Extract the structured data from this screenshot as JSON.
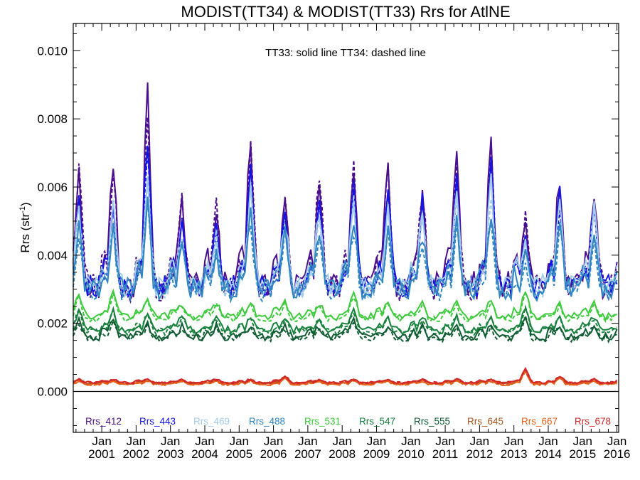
{
  "chart_data": {
    "type": "line",
    "title": "MODIST(TT34) & MODIST(TT33)  Rrs for AtlNE",
    "ylabel": "Rrs (str",
    "ylabel_sup": "-1",
    "ylabel_close": ")",
    "annotation": "TT33: solid line   TT34: dashed line",
    "ylim": [
      -0.0012,
      0.0108
    ],
    "xlim": [
      2000.17,
      2016.05
    ],
    "y_ticks": [
      "0.000",
      "0.002",
      "0.004",
      "0.006",
      "0.008",
      "0.010"
    ],
    "y_tick_values": [
      0,
      0.002,
      0.004,
      0.006,
      0.008,
      0.01
    ],
    "x_tick_month": "Jan",
    "x_tick_years": [
      "2001",
      "2002",
      "2003",
      "2004",
      "2005",
      "2006",
      "2007",
      "2008",
      "2009",
      "2010",
      "2011",
      "2012",
      "2013",
      "2014",
      "2015",
      "2016"
    ],
    "grid": false,
    "legend_placement": "bottom inside plot",
    "series": [
      {
        "name": "Rrs_412",
        "color": "#4B0F8C",
        "base": 0.0041,
        "amps": [
          0.0037,
          0.0056,
          0.003,
          0.0023,
          0.0044,
          0.0025,
          0.0034,
          0.0036,
          0.0034,
          0.0029,
          0.0037,
          0.0043,
          0.0019,
          0.0033,
          0.0029,
          0.0027
        ],
        "summer": 0.0031,
        "bump": 0.0004
      },
      {
        "name": "Rrs_443",
        "color": "#1414E6",
        "base": 0.0037,
        "amps": [
          0.0026,
          0.0043,
          0.0019,
          0.0017,
          0.0036,
          0.0023,
          0.0028,
          0.003,
          0.0027,
          0.0024,
          0.0031,
          0.0036,
          0.0014,
          0.0026,
          0.0024,
          0.0024
        ],
        "summer": 0.0031,
        "bump": 0.0003
      },
      {
        "name": "Rrs_469",
        "color": "#A3CCEB",
        "base": 0.0036,
        "amps": [
          0.0022,
          0.0032,
          0.0016,
          0.0015,
          0.0029,
          0.002,
          0.0023,
          0.0025,
          0.0023,
          0.0021,
          0.0026,
          0.003,
          0.0012,
          0.0023,
          0.0022,
          0.0022
        ],
        "summer": 0.0031,
        "bump": 0.0003
      },
      {
        "name": "Rrs_488",
        "color": "#2F86C2",
        "base": 0.0034,
        "amps": [
          0.0017,
          0.0025,
          0.0013,
          0.0011,
          0.0022,
          0.0017,
          0.0018,
          0.0019,
          0.0018,
          0.0016,
          0.002,
          0.0023,
          0.0009,
          0.0018,
          0.0017,
          0.0017
        ],
        "summer": 0.003,
        "bump": 0.0003
      },
      {
        "name": "Rrs_531",
        "color": "#3DCB3D",
        "base": 0.0024,
        "amps": [
          0.0007,
          0.0006,
          0.0004,
          0.0004,
          0.0005,
          0.0005,
          0.0004,
          0.0007,
          0.0004,
          0.0004,
          0.0004,
          0.0005,
          0.0008,
          0.0004,
          0.0004,
          0.0004
        ],
        "summer": 0.0022,
        "bump": 0.0001
      },
      {
        "name": "Rrs_547",
        "color": "#17823C",
        "base": 0.0019,
        "amps": [
          0.0006,
          0.0005,
          0.0004,
          0.0004,
          0.0004,
          0.0004,
          0.0004,
          0.0006,
          0.0004,
          0.0004,
          0.0004,
          0.0004,
          0.0007,
          0.0004,
          0.0004,
          0.0004
        ],
        "summer": 0.0018,
        "bump": 0.0001
      },
      {
        "name": "Rrs_555",
        "color": "#0F5C32",
        "base": 0.0017,
        "amps": [
          0.0005,
          0.0004,
          0.0003,
          0.0003,
          0.0003,
          0.0003,
          0.0003,
          0.0005,
          0.0003,
          0.0003,
          0.0003,
          0.0003,
          0.0006,
          0.0003,
          0.0003,
          0.0003
        ],
        "summer": 0.0016,
        "bump": 0.0001
      },
      {
        "name": "Rrs_645",
        "color": "#A8581E",
        "base": 0.00026,
        "amps": [
          0.0001,
          0.0001,
          0.0001,
          0.0001,
          0.0001,
          0.0002,
          0.0001,
          0.0001,
          0.0001,
          0.0001,
          0.0001,
          0.0001,
          0.0004,
          0.0002,
          0.0001,
          0.0001
        ],
        "summer": 0.00024,
        "bump": 3e-05
      },
      {
        "name": "Rrs_667",
        "color": "#E4611A",
        "base": 0.00022,
        "amps": [
          0.0001,
          0.0001,
          0.0001,
          0.0001,
          0.0001,
          0.0002,
          0.0001,
          0.0001,
          0.0001,
          0.0001,
          0.0001,
          0.0001,
          0.0004,
          0.0002,
          0.0001,
          0.0001
        ],
        "summer": 0.00021,
        "bump": 3e-05
      },
      {
        "name": "Rrs_678",
        "color": "#D42828",
        "base": 0.00028,
        "amps": [
          0.0001,
          0.0001,
          0.0001,
          0.0001,
          0.0001,
          0.0002,
          0.0001,
          0.0001,
          0.0001,
          0.0001,
          0.0001,
          0.0001,
          0.0004,
          0.0002,
          0.0001,
          0.0001
        ],
        "summer": 0.00026,
        "bump": 3e-05
      }
    ]
  }
}
